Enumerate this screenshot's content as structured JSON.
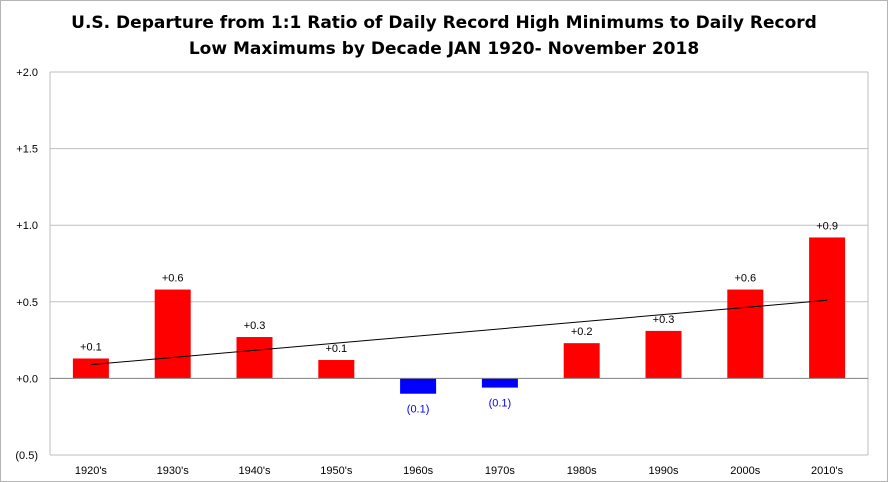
{
  "title_line1": "U.S. Departure from 1:1 Ratio of Daily Record High Minimums to Daily Record",
  "title_line2": "Low Maximums by Decade JAN 1920- November 2018",
  "colors": {
    "positive": "#ff0000",
    "negative": "#0000ff",
    "trend": "#000000",
    "grid": "#bfbfbf",
    "axis": "#808080"
  },
  "chart_data": {
    "type": "bar",
    "categories": [
      "1920's",
      "1930's",
      "1940's",
      "1950's",
      "1960s",
      "1970s",
      "1980s",
      "1990s",
      "2000s",
      "2010's"
    ],
    "values": [
      0.13,
      0.58,
      0.27,
      0.12,
      -0.1,
      -0.06,
      0.23,
      0.31,
      0.58,
      0.92
    ],
    "data_labels": [
      "+0.1",
      "+0.6",
      "+0.3",
      "+0.1",
      "(0.1)",
      "(0.1)",
      "+0.2",
      "+0.3",
      "+0.6",
      "+0.9"
    ],
    "ylim": [
      -0.5,
      2.0
    ],
    "yticks": [
      2.0,
      1.5,
      1.0,
      0.5,
      0.0,
      -0.5
    ],
    "ytick_labels": [
      "+2.0",
      "+1.5",
      "+1.0",
      "+0.5",
      "+0.0",
      "(0.5)"
    ],
    "grid": true,
    "trendline": {
      "type": "linear",
      "start": 0.09,
      "end": 0.51
    }
  }
}
